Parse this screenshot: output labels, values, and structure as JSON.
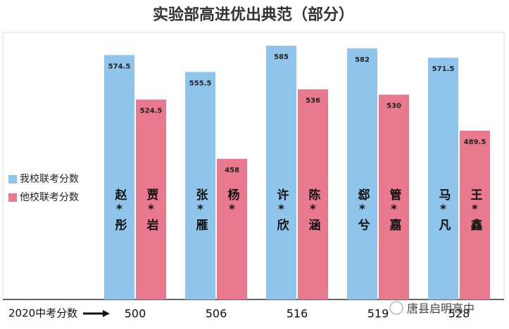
{
  "chart_data": {
    "type": "bar",
    "title": "实验部高进优出典范（部分）",
    "x_label": "2020中考分数",
    "categories": [
      "500",
      "506",
      "516",
      "519",
      "528"
    ],
    "series": [
      {
        "name": "我校联考分数",
        "color": "#8fc5ea",
        "values": [
          574.5,
          555.5,
          585,
          582,
          571.5
        ],
        "bar_labels": [
          "赵*彤",
          "张*雁",
          "许*欣",
          "郄*兮",
          "马*凡"
        ]
      },
      {
        "name": "他校联考分数",
        "color": "#e9798e",
        "values": [
          524.5,
          458,
          536,
          530,
          489.5
        ],
        "bar_labels": [
          "贾*岩",
          "杨*",
          "陈*涵",
          "管*嘉",
          "王*鑫"
        ]
      }
    ],
    "ylim": [
      300,
      600
    ],
    "watermark": "唐县启明高中"
  }
}
